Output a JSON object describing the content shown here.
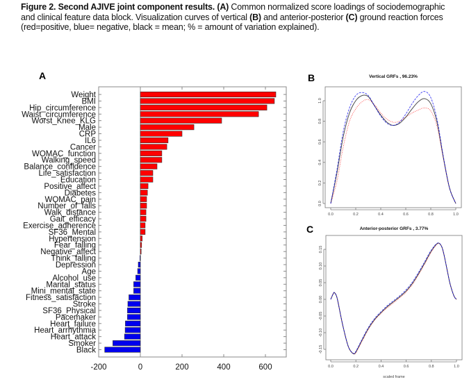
{
  "caption": {
    "figure_label": "Figure 2. Second AJIVE joint component results.",
    "panel_a_ref": "(A)",
    "text_1": " Common normalized score loadings of sociodemographic and clinical feature data block. Visualization curves of vertical ",
    "panel_b_ref": "(B)",
    "text_2": " and anterior-posterior ",
    "panel_c_ref": "(C)",
    "text_3": " ground reaction forces (red=positive, blue= negative, black = mean; % = amount of variation explained)."
  },
  "panels": {
    "a_label": "A",
    "b_label": "B",
    "c_label": "C"
  },
  "colors": {
    "positive": "#ff0000",
    "negative": "#0000ee",
    "mean": "#000000"
  },
  "chart_data": [
    {
      "type": "bar",
      "orientation": "horizontal",
      "title": "",
      "xlabel": "",
      "ylabel": "",
      "xlim": [
        -200,
        700
      ],
      "xticks": [
        -200,
        0,
        200,
        400,
        600
      ],
      "xtick_labels": [
        "-200",
        "0",
        "200",
        "400",
        "600"
      ],
      "grid": false,
      "categories": [
        "Weight",
        "BMI",
        "Hip_circumference",
        "Waist_circumference",
        "Worst_Knee_KLG",
        "Male",
        "CRP",
        "IL6",
        "Cancer",
        "WOMAC_function",
        "Walking_speed",
        "Balance_confidence",
        "Life_satisfaction",
        "Education",
        "Positive_affect",
        "Diabetes",
        "WOMAC_pain",
        "Number_of_falls",
        "Walk_distance",
        "Gait_efficacy",
        "Exercise_adherence",
        "SF36_Mental",
        "Hypertension",
        "Fear_falling",
        "Negative_affect",
        "Think_falling",
        "Depression",
        "Age",
        "Alcohol_use",
        "Marital_status",
        "Mini_mental_state",
        "Fitness_satisfaction",
        "Stroke",
        "SF36_Physical",
        "Pacemaker",
        "Heart_failure",
        "Heart_arrhythmia",
        "Heart_attack",
        "Smoker",
        "Black"
      ],
      "values": [
        650,
        643,
        607,
        567,
        390,
        257,
        200,
        133,
        127,
        103,
        103,
        80,
        60,
        60,
        37,
        34,
        30,
        30,
        27,
        27,
        23,
        23,
        9,
        6,
        4,
        -2,
        -10,
        -13,
        -22,
        -32,
        -32,
        -55,
        -60,
        -62,
        -62,
        -72,
        -73,
        -76,
        -132,
        -171
      ]
    },
    {
      "type": "line",
      "title": "Vertical GRFs , 96.23%",
      "xlabel": "",
      "ylabel": "",
      "xlim": [
        0,
        1
      ],
      "ylim": [
        0,
        1.1
      ],
      "xticks": [
        0.0,
        0.2,
        0.4,
        0.6,
        0.8,
        1.0
      ],
      "xtick_labels": [
        "0.0",
        "0.2",
        "0.4",
        "0.6",
        "0.8",
        "1.0"
      ],
      "yticks": [
        0.0,
        0.2,
        0.4,
        0.6,
        0.8,
        1.0
      ],
      "ytick_labels": [
        "0.0",
        "0.2",
        "0.4",
        "0.6",
        "0.8",
        "1.0"
      ],
      "grid": false,
      "x": [
        0.0,
        0.05,
        0.1,
        0.15,
        0.2,
        0.25,
        0.3,
        0.35,
        0.4,
        0.45,
        0.5,
        0.55,
        0.6,
        0.65,
        0.7,
        0.75,
        0.8,
        0.85,
        0.9,
        0.95,
        1.0
      ],
      "series": [
        {
          "name": "positive",
          "color": "red",
          "style": "dotted",
          "values": [
            0.0,
            0.22,
            0.55,
            0.8,
            0.92,
            0.99,
            1.01,
            0.96,
            0.88,
            0.82,
            0.79,
            0.8,
            0.84,
            0.88,
            0.91,
            0.93,
            0.9,
            0.75,
            0.44,
            0.15,
            0.0
          ]
        },
        {
          "name": "mean",
          "color": "black",
          "style": "solid",
          "values": [
            0.0,
            0.3,
            0.65,
            0.88,
            1.0,
            1.05,
            1.04,
            0.95,
            0.86,
            0.79,
            0.76,
            0.78,
            0.84,
            0.92,
            0.99,
            1.02,
            0.97,
            0.79,
            0.45,
            0.15,
            0.0
          ]
        },
        {
          "name": "negative",
          "color": "blue",
          "style": "dashed",
          "values": [
            0.0,
            0.33,
            0.7,
            0.93,
            1.05,
            1.08,
            1.05,
            0.95,
            0.85,
            0.78,
            0.76,
            0.79,
            0.87,
            0.97,
            1.05,
            1.09,
            1.03,
            0.82,
            0.46,
            0.15,
            0.0
          ]
        }
      ]
    },
    {
      "type": "line",
      "title": "Anterior-posterior GRFs , 3.77%",
      "xlabel": "scaled frame",
      "ylabel": "",
      "xlim": [
        0,
        1
      ],
      "ylim": [
        -0.17,
        0.175
      ],
      "xticks": [
        0.0,
        0.2,
        0.4,
        0.6,
        0.8,
        1.0
      ],
      "xtick_labels": [
        "0.0",
        "0.2",
        "0.4",
        "0.6",
        "0.8",
        "1.0"
      ],
      "yticks": [
        -0.15,
        -0.1,
        -0.05,
        0.0,
        0.05,
        0.1,
        0.15
      ],
      "ytick_labels": [
        "-0.15",
        "-0.10",
        "-0.05",
        "0.00",
        "0.05",
        "0.10",
        "0.15"
      ],
      "grid": false,
      "x": [
        0.0,
        0.02,
        0.03,
        0.05,
        0.08,
        0.1,
        0.13,
        0.15,
        0.18,
        0.2,
        0.25,
        0.3,
        0.35,
        0.4,
        0.45,
        0.5,
        0.55,
        0.6,
        0.65,
        0.7,
        0.75,
        0.8,
        0.85,
        0.88,
        0.9,
        0.93,
        0.95,
        0.98,
        1.0
      ],
      "series": [
        {
          "name": "positive",
          "color": "red",
          "style": "dotted",
          "values": [
            0.0,
            0.017,
            0.02,
            0.005,
            -0.05,
            -0.085,
            -0.13,
            -0.15,
            -0.163,
            -0.16,
            -0.125,
            -0.09,
            -0.062,
            -0.042,
            -0.025,
            -0.01,
            0.005,
            0.022,
            0.045,
            0.075,
            0.108,
            0.142,
            0.167,
            0.16,
            0.135,
            0.08,
            0.045,
            0.01,
            0.0
          ]
        },
        {
          "name": "mean",
          "color": "black",
          "style": "solid",
          "values": [
            0.0,
            0.017,
            0.02,
            0.005,
            -0.05,
            -0.085,
            -0.13,
            -0.15,
            -0.163,
            -0.158,
            -0.122,
            -0.087,
            -0.06,
            -0.04,
            -0.022,
            -0.007,
            0.008,
            0.025,
            0.048,
            0.078,
            0.111,
            0.145,
            0.168,
            0.16,
            0.135,
            0.08,
            0.045,
            0.01,
            0.0
          ]
        },
        {
          "name": "negative",
          "color": "blue",
          "style": "dashed",
          "values": [
            0.0,
            0.017,
            0.02,
            0.005,
            -0.05,
            -0.085,
            -0.13,
            -0.15,
            -0.162,
            -0.156,
            -0.119,
            -0.084,
            -0.057,
            -0.037,
            -0.019,
            -0.004,
            0.011,
            0.029,
            0.052,
            0.082,
            0.115,
            0.148,
            0.169,
            0.16,
            0.135,
            0.08,
            0.045,
            0.01,
            0.0
          ]
        }
      ]
    }
  ]
}
